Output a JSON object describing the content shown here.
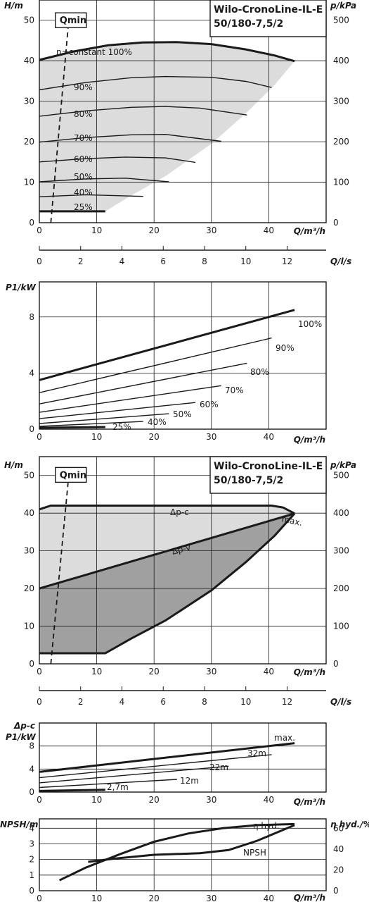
{
  "title": {
    "line1": "Wilo-CronoLine-IL-E",
    "line2": "50/180-7,5/2"
  },
  "colors": {
    "range_fill": "#dcdcdc",
    "dp_v_fill": "#a0a0a0",
    "curve": "#1a1a1a",
    "grid": "#1a1a1a"
  },
  "chart_data": [
    {
      "id": "hq1",
      "type": "line",
      "title": "Wilo-CronoLine-IL-E 50/180-7,5/2",
      "ylabel": "H/m",
      "ylabel_right": "p/kPa",
      "xlabel": "Q/m³/h",
      "xlim": [
        0,
        50
      ],
      "ylim": [
        0,
        55
      ],
      "xticks": [
        0,
        10,
        20,
        30,
        40
      ],
      "yticks": [
        0,
        10,
        20,
        30,
        40,
        50
      ],
      "yticks_right": [
        0,
        100,
        200,
        300,
        400,
        500
      ],
      "qmin_label": "Qmin",
      "qmin_line": [
        [
          2,
          0
        ],
        [
          5,
          48
        ]
      ],
      "operating_range": [
        [
          0,
          40.2
        ],
        [
          6,
          42.3
        ],
        [
          12,
          43.8
        ],
        [
          18,
          44.5
        ],
        [
          24,
          44.6
        ],
        [
          30,
          44.1
        ],
        [
          36,
          42.8
        ],
        [
          41,
          41.3
        ],
        [
          44.5,
          39.9
        ],
        [
          41,
          34
        ],
        [
          36,
          27
        ],
        [
          30,
          19.5
        ],
        [
          22,
          11.5
        ],
        [
          16,
          6.7
        ],
        [
          11.5,
          2.8
        ],
        [
          0,
          2.8
        ]
      ],
      "series": [
        {
          "name": "n=constant 100%",
          "x": [
            0,
            6,
            12,
            18,
            24,
            30,
            36,
            41,
            44.5
          ],
          "y": [
            40.2,
            42.3,
            43.8,
            44.5,
            44.6,
            44.1,
            42.8,
            41.3,
            39.9
          ]
        },
        {
          "name": "90%",
          "x": [
            0,
            8,
            16,
            22,
            30,
            36,
            40.5
          ],
          "y": [
            32.8,
            34.6,
            35.8,
            36.1,
            35.9,
            34.9,
            33.4
          ]
        },
        {
          "name": "80%",
          "x": [
            0,
            8,
            16,
            22,
            28,
            36.2
          ],
          "y": [
            26.3,
            27.6,
            28.5,
            28.7,
            28.3,
            26.6
          ]
        },
        {
          "name": "70%",
          "x": [
            0,
            8,
            16,
            22,
            31.7
          ],
          "y": [
            19.9,
            21.0,
            21.7,
            21.8,
            20.1
          ]
        },
        {
          "name": "60%",
          "x": [
            0,
            8,
            15,
            22,
            27.2
          ],
          "y": [
            15.0,
            15.8,
            16.2,
            16.0,
            14.9
          ]
        },
        {
          "name": "50%",
          "x": [
            0,
            8,
            15,
            22.6
          ],
          "y": [
            10.1,
            10.8,
            11.0,
            10.1
          ]
        },
        {
          "name": "40%",
          "x": [
            0,
            8,
            18.1
          ],
          "y": [
            6.4,
            6.9,
            6.5
          ]
        },
        {
          "name": "25%",
          "x": [
            0,
            11.5
          ],
          "y": [
            2.8,
            2.8
          ]
        }
      ]
    },
    {
      "id": "qls1",
      "type": "axis",
      "xlabel": "Q/l/s",
      "xlim": [
        0,
        13.89
      ],
      "xticks": [
        0,
        2,
        4,
        6,
        8,
        10,
        12
      ]
    },
    {
      "id": "p1",
      "type": "line",
      "ylabel": "P1/kW",
      "xlabel": "Q/m³/h",
      "xlim": [
        0,
        50
      ],
      "ylim": [
        0,
        10.5
      ],
      "xticks": [
        0,
        10,
        20,
        30,
        40
      ],
      "yticks": [
        0,
        4,
        8
      ],
      "series": [
        {
          "name": "100%",
          "x": [
            0,
            44.5
          ],
          "y": [
            3.5,
            8.5
          ]
        },
        {
          "name": "90%",
          "x": [
            0,
            40.5
          ],
          "y": [
            2.6,
            6.5
          ]
        },
        {
          "name": "80%",
          "x": [
            0,
            36.2
          ],
          "y": [
            1.8,
            4.7
          ]
        },
        {
          "name": "70%",
          "x": [
            0,
            31.7
          ],
          "y": [
            1.2,
            3.1
          ]
        },
        {
          "name": "60%",
          "x": [
            0,
            27.2
          ],
          "y": [
            0.75,
            1.9
          ]
        },
        {
          "name": "50%",
          "x": [
            0,
            22.6
          ],
          "y": [
            0.4,
            1.1
          ]
        },
        {
          "name": "40%",
          "x": [
            0,
            18.1
          ],
          "y": [
            0.2,
            0.55
          ]
        },
        {
          "name": "25%",
          "x": [
            0,
            11.5
          ],
          "y": [
            0.1,
            0.15
          ]
        }
      ]
    },
    {
      "id": "hq2",
      "type": "area",
      "title": "Wilo-CronoLine-IL-E 50/180-7,5/2",
      "ylabel": "H/m",
      "ylabel_right": "p/kPa",
      "xlabel": "Q/m³/h",
      "xlim": [
        0,
        50
      ],
      "ylim": [
        0,
        55
      ],
      "xticks": [
        0,
        10,
        20,
        30,
        40
      ],
      "yticks": [
        0,
        10,
        20,
        30,
        40,
        50
      ],
      "yticks_right": [
        0,
        100,
        200,
        300,
        400,
        500
      ],
      "qmin_label": "Qmin",
      "qmin_line": [
        [
          2,
          0
        ],
        [
          5,
          48
        ]
      ],
      "label_dpc": "Δp-c",
      "label_dpv": "Δp-v",
      "label_max": "max.",
      "series": [
        {
          "name": "Δp-c",
          "x": [
            0,
            2,
            40.5,
            42.5,
            44.5
          ],
          "y": [
            41,
            42,
            42,
            41.5,
            39.9
          ]
        },
        {
          "name": "Δp-v",
          "x": [
            0,
            44.5
          ],
          "y": [
            20,
            39.9
          ]
        },
        {
          "name": "max.",
          "x": [
            44.5,
            41,
            36,
            30,
            22,
            16,
            11.5,
            0
          ],
          "y": [
            39.9,
            34,
            27,
            19.5,
            11.5,
            6.7,
            2.8,
            2.8
          ]
        }
      ]
    },
    {
      "id": "qls2",
      "type": "axis",
      "xlabel": "Q/l/s",
      "xlim": [
        0,
        13.89
      ],
      "xticks": [
        0,
        2,
        4,
        6,
        8,
        10,
        12
      ]
    },
    {
      "id": "p2",
      "type": "line",
      "ylabel_top": "Δp-c",
      "ylabel": "P1/kW",
      "xlabel": "Q/m³/h",
      "xlim": [
        0,
        50
      ],
      "ylim": [
        0,
        12
      ],
      "xticks": [
        0,
        10,
        20,
        30,
        40
      ],
      "yticks": [
        0,
        4,
        8
      ],
      "series": [
        {
          "name": "max.",
          "x": [
            0,
            44.5
          ],
          "y": [
            3.5,
            8.5
          ]
        },
        {
          "name": "32m",
          "x": [
            0,
            40.5
          ],
          "y": [
            2.5,
            6.5
          ]
        },
        {
          "name": "22m",
          "x": [
            0,
            33
          ],
          "y": [
            1.6,
            4.5
          ]
        },
        {
          "name": "12m",
          "x": [
            0,
            24
          ],
          "y": [
            0.8,
            2.2
          ]
        },
        {
          "name": "2,7m",
          "x": [
            0,
            11.5
          ],
          "y": [
            0.2,
            0.4
          ]
        }
      ]
    },
    {
      "id": "npsh",
      "type": "line",
      "ylabel": "NPSH/m",
      "ylabel_right": "η hyd./%",
      "xlabel": "Q/m³/h",
      "xlim": [
        0,
        50
      ],
      "ylim": [
        0,
        4.6
      ],
      "xticks": [
        0,
        10,
        20,
        30,
        40
      ],
      "yticks": [
        0,
        1,
        2,
        3,
        4
      ],
      "yticks_right": [
        0,
        20,
        40,
        60
      ],
      "yright_range": [
        0,
        69
      ],
      "series": [
        {
          "name": "η hyd.",
          "axis": "right",
          "x": [
            3.5,
            8,
            14,
            20,
            26,
            32,
            38,
            44.5
          ],
          "y": [
            10,
            22,
            35,
            47,
            55,
            60,
            63,
            64
          ]
        },
        {
          "name": "NPSH",
          "axis": "left",
          "x": [
            8.5,
            13,
            20,
            28,
            33,
            38,
            44.5
          ],
          "y": [
            1.85,
            2.05,
            2.3,
            2.4,
            2.6,
            3.2,
            4.2
          ]
        }
      ]
    }
  ]
}
